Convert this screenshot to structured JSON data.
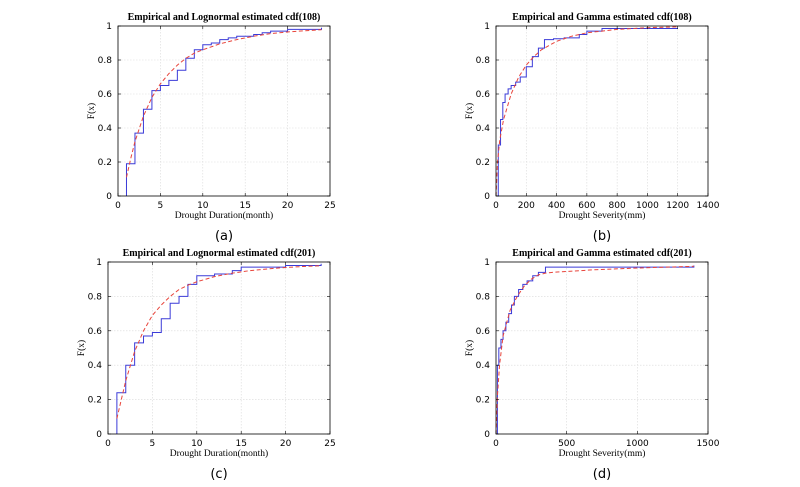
{
  "colors": {
    "empirical": "#3b3bd8",
    "estimated": "#e8453c",
    "grid": "#d9d9d9",
    "axes": "#000000"
  },
  "chart_data": [
    {
      "type": "line",
      "caption": "(a)",
      "title": "Empirical and Lognormal estimated cdf(108)",
      "xlabel": "Drought Duration(month)",
      "ylabel": "F(x)",
      "xlim": [
        0,
        25
      ],
      "ylim": [
        0,
        1
      ],
      "xticks": [
        0,
        5,
        10,
        15,
        20,
        25
      ],
      "yticks": [
        0,
        0.2,
        0.4,
        0.6,
        0.8,
        1
      ],
      "grid": true,
      "series": [
        {
          "style": "empirical-step",
          "x": [
            1,
            1,
            2,
            3,
            4,
            5,
            6,
            7,
            8,
            9,
            10,
            11,
            12,
            13,
            14,
            16,
            17,
            18,
            20,
            24
          ],
          "y": [
            0,
            0.19,
            0.37,
            0.51,
            0.62,
            0.65,
            0.68,
            0.74,
            0.81,
            0.86,
            0.89,
            0.9,
            0.92,
            0.93,
            0.94,
            0.95,
            0.96,
            0.97,
            0.98,
            0.99
          ]
        },
        {
          "style": "estimated-dashed",
          "x": [
            1,
            1.5,
            2,
            3,
            4,
            5,
            6,
            7,
            8,
            9,
            10,
            12,
            14,
            16,
            18,
            20,
            22,
            24
          ],
          "y": [
            0.11,
            0.22,
            0.32,
            0.47,
            0.58,
            0.66,
            0.72,
            0.77,
            0.81,
            0.84,
            0.86,
            0.895,
            0.92,
            0.94,
            0.955,
            0.965,
            0.972,
            0.978
          ]
        }
      ]
    },
    {
      "type": "line",
      "caption": "(b)",
      "title": "Empirical and Gamma estimated cdf(108)",
      "xlabel": "Drought Severity(mm)",
      "ylabel": "F(x)",
      "xlim": [
        0,
        1400
      ],
      "ylim": [
        0,
        1
      ],
      "xticks": [
        0,
        200,
        400,
        600,
        800,
        1000,
        1200,
        1400
      ],
      "yticks": [
        0,
        0.2,
        0.4,
        0.6,
        0.8,
        1
      ],
      "grid": true,
      "series": [
        {
          "style": "empirical-step",
          "x": [
            5,
            15,
            30,
            45,
            60,
            80,
            100,
            130,
            160,
            200,
            240,
            280,
            320,
            380,
            450,
            550,
            600,
            700,
            1200
          ],
          "y": [
            0.0,
            0.3,
            0.45,
            0.55,
            0.6,
            0.63,
            0.65,
            0.67,
            0.7,
            0.76,
            0.82,
            0.87,
            0.92,
            0.925,
            0.93,
            0.95,
            0.97,
            0.985,
            0.985
          ]
        },
        {
          "style": "estimated-dashed",
          "x": [
            0,
            10,
            25,
            50,
            100,
            150,
            200,
            250,
            300,
            400,
            500,
            600,
            800,
            1000,
            1200
          ],
          "y": [
            0.0,
            0.2,
            0.33,
            0.45,
            0.6,
            0.7,
            0.77,
            0.82,
            0.86,
            0.91,
            0.94,
            0.96,
            0.98,
            0.99,
            0.995
          ]
        }
      ]
    },
    {
      "type": "line",
      "caption": "(c)",
      "title": "Empirical and Lognormal estimated cdf(201)",
      "xlabel": "Drought Duration(month)",
      "ylabel": "F(x)",
      "xlim": [
        0,
        25
      ],
      "ylim": [
        0,
        1
      ],
      "xticks": [
        0,
        5,
        10,
        15,
        20,
        25
      ],
      "yticks": [
        0,
        0.2,
        0.4,
        0.6,
        0.8,
        1
      ],
      "grid": true,
      "series": [
        {
          "style": "empirical-step",
          "x": [
            1,
            1,
            2,
            3,
            4,
            5,
            6,
            7,
            8,
            9,
            10,
            12,
            14,
            15,
            20,
            24
          ],
          "y": [
            0,
            0.24,
            0.4,
            0.53,
            0.57,
            0.59,
            0.67,
            0.76,
            0.8,
            0.87,
            0.92,
            0.93,
            0.95,
            0.97,
            0.98,
            0.99
          ]
        },
        {
          "style": "estimated-dashed",
          "x": [
            1,
            1.5,
            2,
            3,
            4,
            5,
            6,
            7,
            8,
            9,
            10,
            12,
            14,
            16,
            18,
            20,
            22,
            24
          ],
          "y": [
            0.09,
            0.2,
            0.31,
            0.48,
            0.6,
            0.69,
            0.75,
            0.8,
            0.84,
            0.865,
            0.885,
            0.915,
            0.935,
            0.95,
            0.96,
            0.968,
            0.974,
            0.978
          ]
        }
      ]
    },
    {
      "type": "line",
      "caption": "(d)",
      "title": "Empirical and Gamma estimated cdf(201)",
      "xlabel": "Drought Severity(mm)",
      "ylabel": "F(x)",
      "xlim": [
        0,
        1500
      ],
      "ylim": [
        0,
        1
      ],
      "xticks": [
        0,
        500,
        1000,
        1500
      ],
      "yticks": [
        0,
        0.2,
        0.4,
        0.6,
        0.8,
        1
      ],
      "grid": true,
      "series": [
        {
          "style": "empirical-step",
          "x": [
            3,
            10,
            20,
            35,
            50,
            70,
            90,
            110,
            130,
            160,
            190,
            220,
            260,
            300,
            350,
            1400
          ],
          "y": [
            0.0,
            0.4,
            0.5,
            0.55,
            0.6,
            0.65,
            0.7,
            0.75,
            0.8,
            0.84,
            0.87,
            0.89,
            0.92,
            0.94,
            0.97,
            0.98
          ]
        },
        {
          "style": "estimated-dashed",
          "x": [
            0,
            10,
            25,
            50,
            100,
            150,
            200,
            250,
            300,
            350,
            400,
            500,
            700,
            1000,
            1400
          ],
          "y": [
            0.0,
            0.22,
            0.4,
            0.57,
            0.72,
            0.8,
            0.86,
            0.9,
            0.925,
            0.935,
            0.94,
            0.945,
            0.955,
            0.965,
            0.975
          ]
        }
      ]
    }
  ]
}
